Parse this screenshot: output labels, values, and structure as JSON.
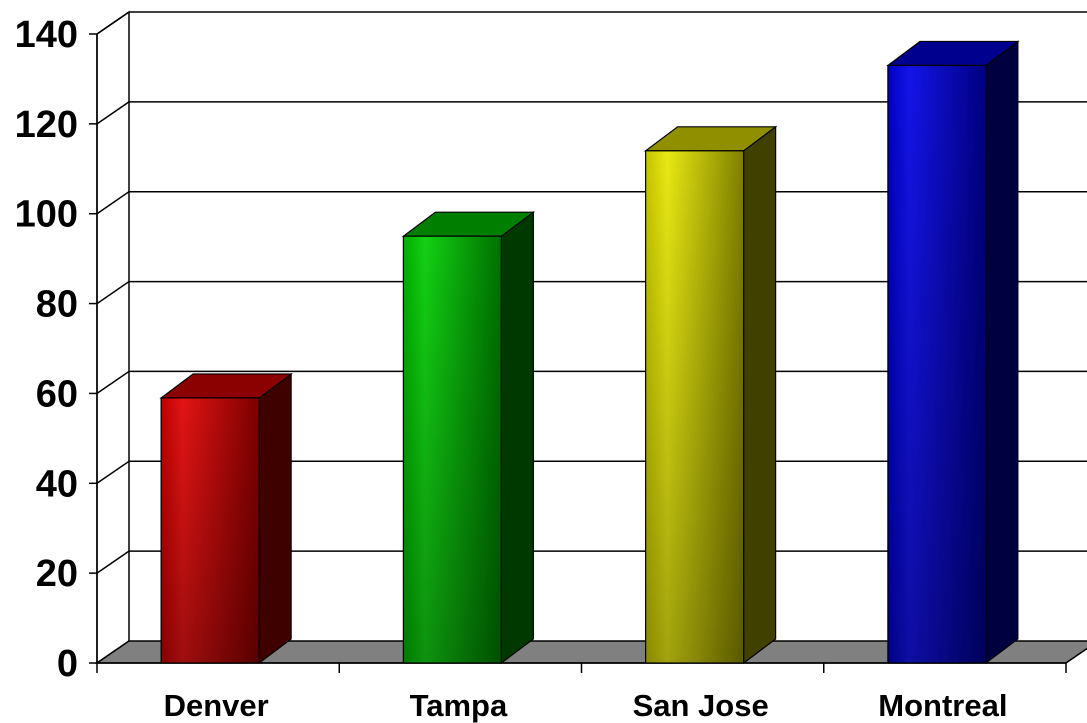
{
  "chart_data": {
    "type": "bar",
    "style": "3d-column",
    "categories": [
      "Denver",
      "Tampa",
      "San Jose",
      "Montreal"
    ],
    "values": [
      59,
      95,
      114,
      133
    ],
    "bar_colors": [
      "#e00000",
      "#00cc00",
      "#e6e600",
      "#0000e6"
    ],
    "y_ticks": [
      "0",
      "20",
      "40",
      "60",
      "80",
      "100",
      "120",
      "140"
    ],
    "ylim": [
      0,
      140
    ],
    "grid": true,
    "legend": "none",
    "floor_color": "#808080",
    "title": "",
    "xlabel": "",
    "ylabel": ""
  }
}
